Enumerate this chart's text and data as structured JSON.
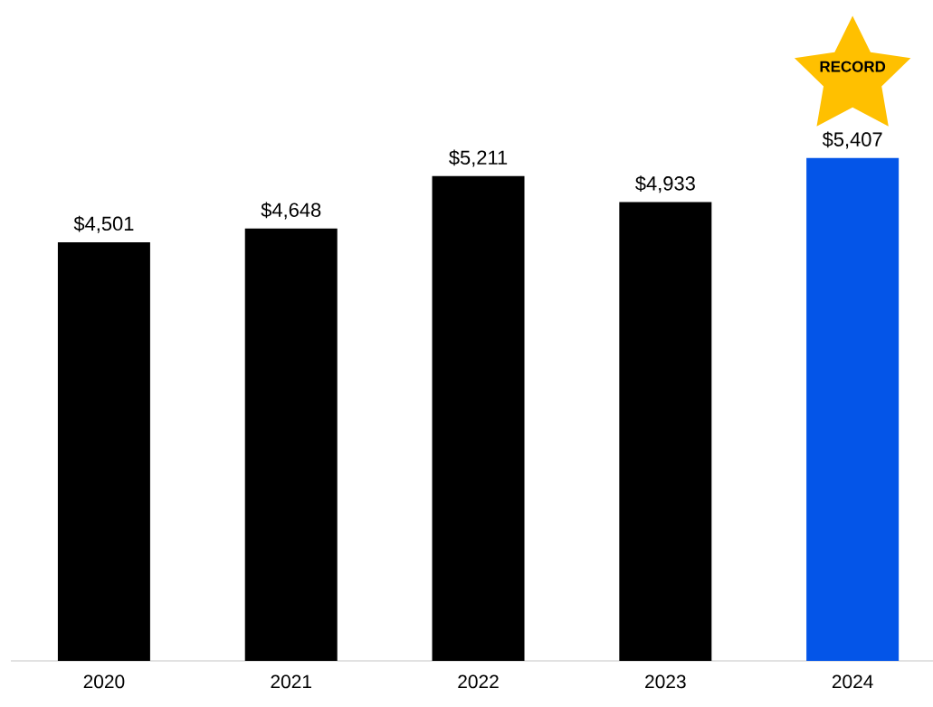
{
  "chart_data": {
    "type": "bar",
    "categories": [
      "2020",
      "2021",
      "2022",
      "2023",
      "2024"
    ],
    "values": [
      4501,
      4648,
      5211,
      4933,
      5407
    ],
    "colors": [
      "#000000",
      "#000000",
      "#000000",
      "#000000",
      "#0455e8"
    ],
    "value_labels": [
      "$4,501",
      "$4,648",
      "$5,211",
      "$4,933",
      "$5,407"
    ],
    "annotations": [
      "RECORD"
    ]
  }
}
